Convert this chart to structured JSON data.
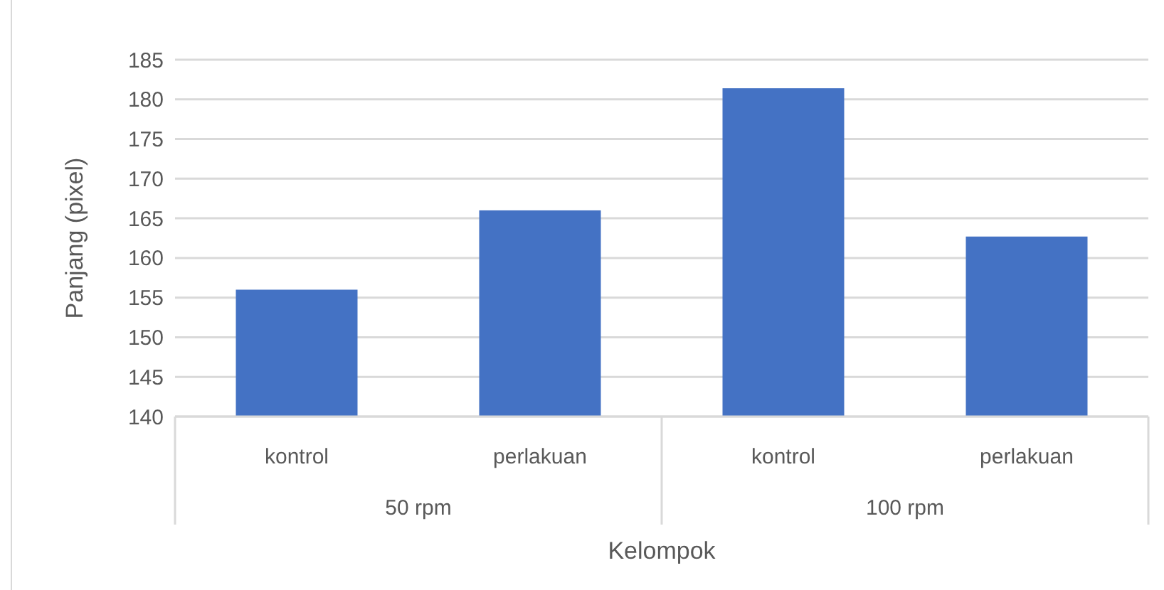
{
  "chart_data": {
    "type": "bar",
    "xlabel": "Kelompok",
    "ylabel": "Panjang (pixel)",
    "categories": [
      "kontrol",
      "perlakuan",
      "kontrol",
      "perlakuan"
    ],
    "values": [
      156.0,
      166.0,
      181.4,
      162.7
    ],
    "color": "#4472c4",
    "ylim": [
      140,
      185
    ],
    "yticks": [
      140,
      145,
      150,
      155,
      160,
      165,
      170,
      175,
      180,
      185
    ],
    "grid": "y",
    "annotations": [
      "50 rpm",
      "100 rpm"
    ]
  }
}
